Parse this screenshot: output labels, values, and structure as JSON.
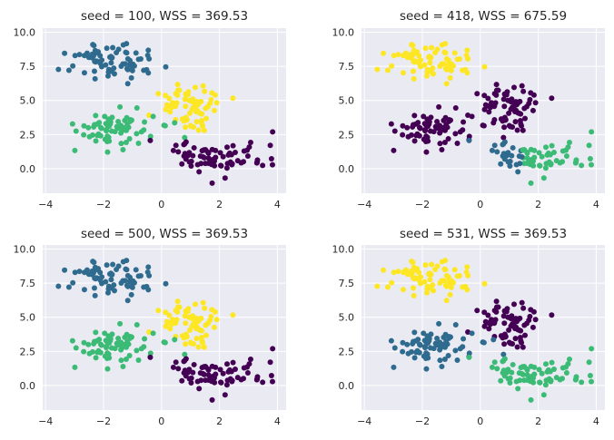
{
  "chart_data": [
    {
      "type": "scatter",
      "title": "seed = 100, WSS = 369.53",
      "xlim": [
        -4.1,
        4.3
      ],
      "ylim": [
        -1.8,
        10.3
      ],
      "xticks": [
        "−4",
        "−2",
        "0",
        "2",
        "4"
      ],
      "yticks": [
        "0.0",
        "2.5",
        "5.0",
        "7.5",
        "10.0"
      ],
      "grid": true,
      "cluster_colors": {
        "A": "#2f6b8e",
        "B": "#fde725",
        "C": "#3bbb75",
        "D": "#440154"
      }
    },
    {
      "type": "scatter",
      "title": "seed = 418, WSS = 675.59",
      "xlim": [
        -4.1,
        4.3
      ],
      "ylim": [
        -1.8,
        10.3
      ],
      "xticks": [
        "−4",
        "−2",
        "0",
        "2",
        "4"
      ],
      "yticks": [
        "0.0",
        "2.5",
        "5.0",
        "7.5",
        "10.0"
      ],
      "grid": true,
      "cluster_colors": {
        "A": "#fde725",
        "B": "#440154",
        "C": "#440154",
        "D_left": "#2f6b8e",
        "D_right": "#3bbb75"
      }
    },
    {
      "type": "scatter",
      "title": "seed = 500, WSS = 369.53",
      "xlim": [
        -4.1,
        4.3
      ],
      "ylim": [
        -1.8,
        10.3
      ],
      "xticks": [
        "−4",
        "−2",
        "0",
        "2",
        "4"
      ],
      "yticks": [
        "0.0",
        "2.5",
        "5.0",
        "7.5",
        "10.0"
      ],
      "grid": true,
      "cluster_colors": {
        "A": "#2f6b8e",
        "B": "#fde725",
        "C": "#3bbb75",
        "D": "#440154"
      }
    },
    {
      "type": "scatter",
      "title": "seed = 531, WSS = 369.53",
      "xlim": [
        -4.1,
        4.3
      ],
      "ylim": [
        -1.8,
        10.3
      ],
      "xticks": [
        "−4",
        "−2",
        "0",
        "2",
        "4"
      ],
      "yticks": [
        "0.0",
        "2.5",
        "5.0",
        "7.5",
        "10.0"
      ],
      "grid": true,
      "cluster_colors": {
        "A": "#fde725",
        "B": "#440154",
        "C": "#2f6b8e",
        "D": "#3bbb75"
      }
    }
  ],
  "blobs": [
    {
      "id": "A",
      "center": [
        -1.6,
        7.9
      ],
      "spread": [
        0.75,
        0.7
      ],
      "n": 75
    },
    {
      "id": "B",
      "center": [
        0.95,
        4.45
      ],
      "spread": [
        0.6,
        0.7
      ],
      "n": 75
    },
    {
      "id": "C",
      "center": [
        -1.6,
        2.9
      ],
      "spread": [
        0.75,
        0.7
      ],
      "n": 75
    },
    {
      "id": "D",
      "center": [
        1.9,
        0.8
      ],
      "spread": [
        0.8,
        0.65
      ],
      "n": 75
    }
  ],
  "style": {
    "panel_bg": "#eaeaf2",
    "grid_color": "#ffffff",
    "text_color": "#262626"
  }
}
